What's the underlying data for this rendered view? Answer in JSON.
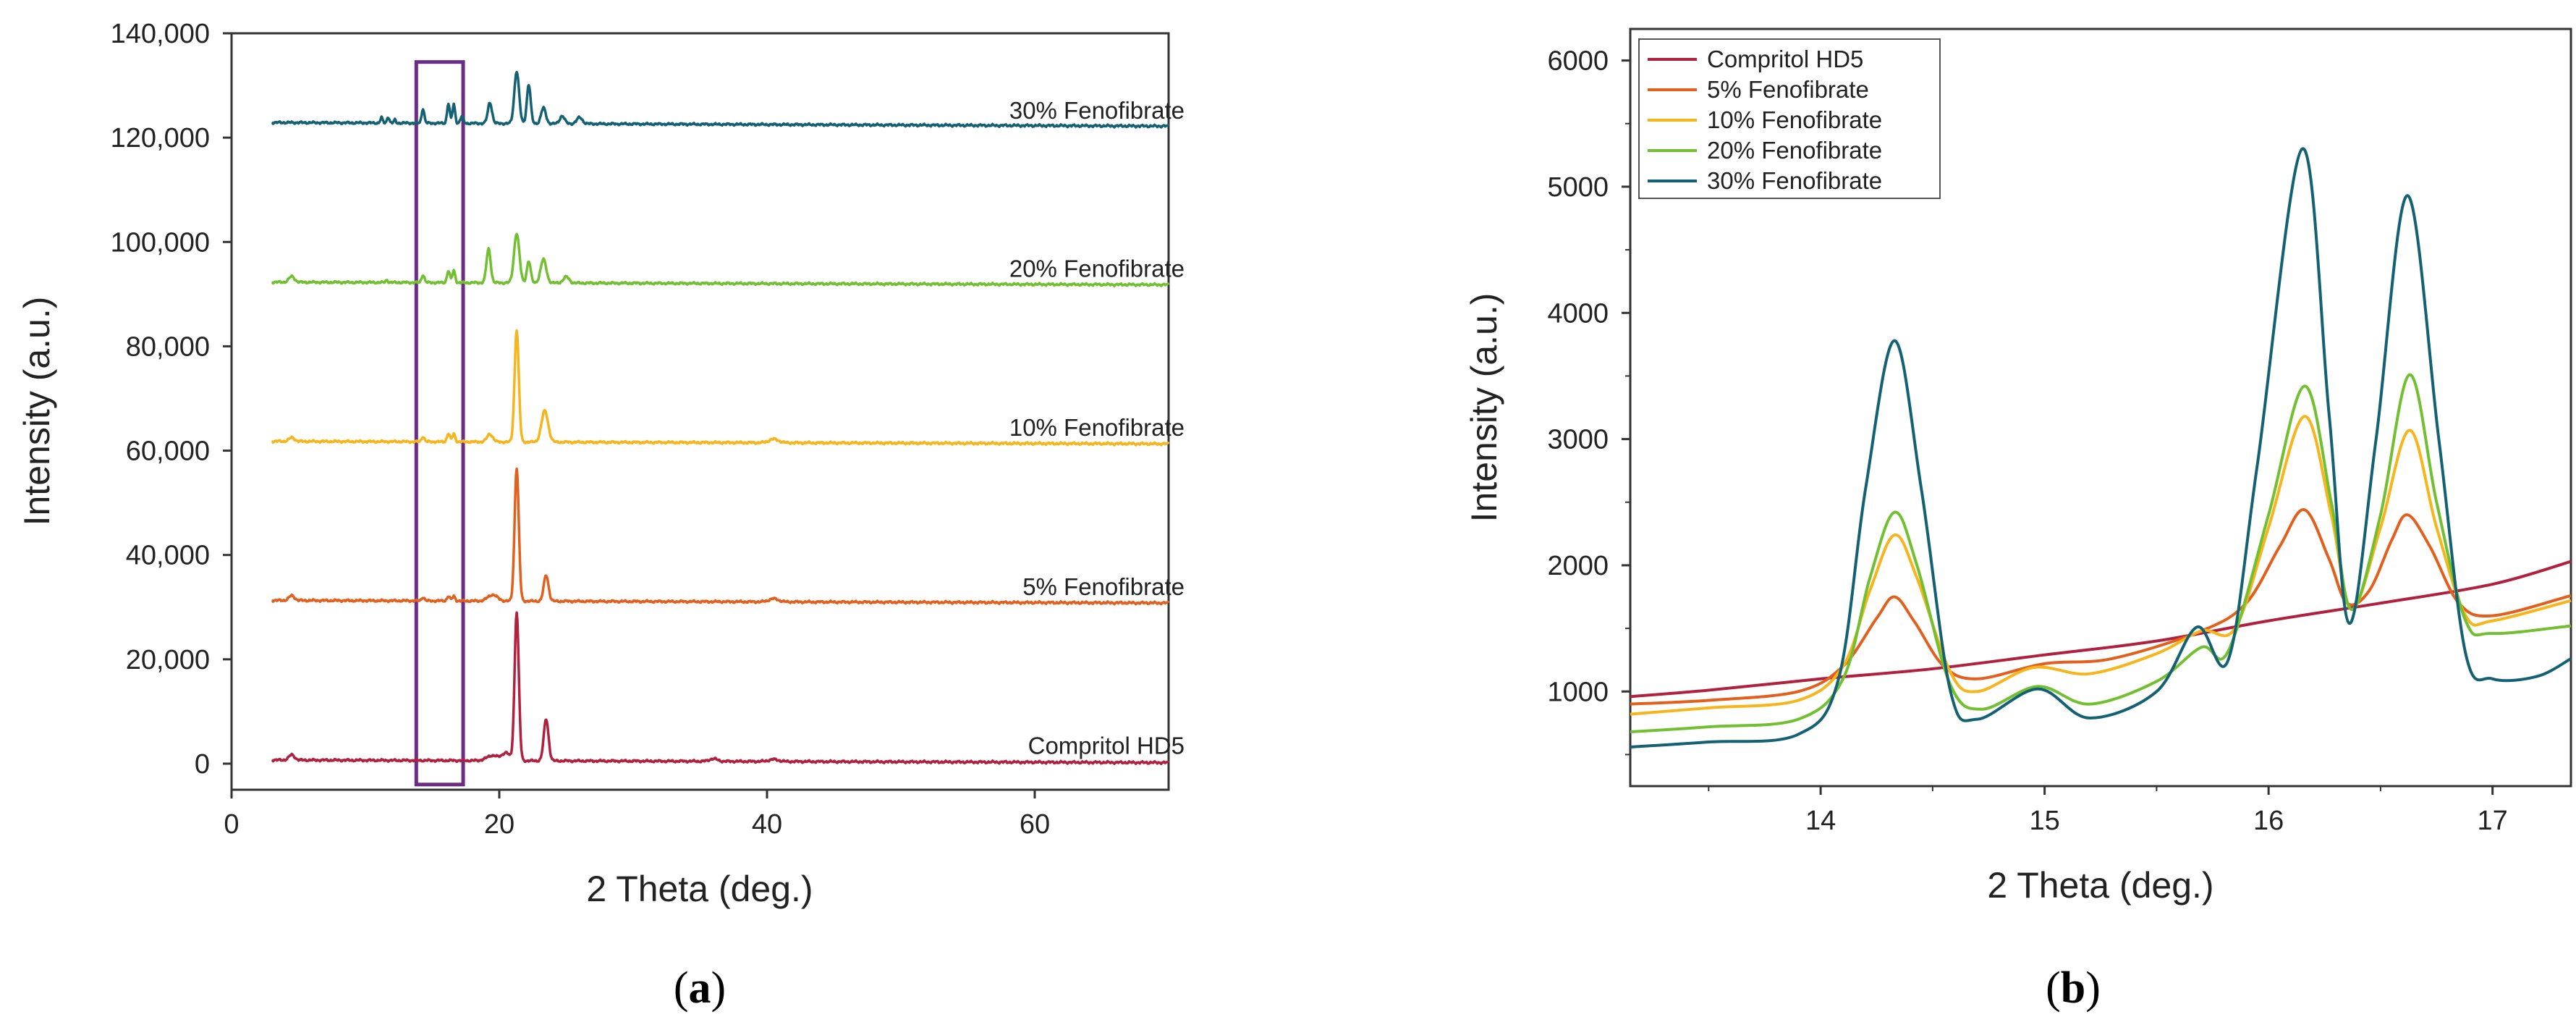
{
  "figure": {
    "panel_a_label_open": "(",
    "panel_a_label_letter": "a",
    "panel_a_label_close": ")",
    "panel_b_label_open": "(",
    "panel_b_label_letter": "b",
    "panel_b_label_close": ")"
  },
  "chart_data": [
    {
      "id": "a",
      "type": "line",
      "xlabel": "2 Theta (deg.)",
      "ylabel": "Intensity (a.u.)",
      "xlim": [
        0,
        70
      ],
      "ylim": [
        -5000,
        140000
      ],
      "x_ticks": [
        0,
        20,
        40,
        60
      ],
      "y_ticks": [
        0,
        20000,
        40000,
        60000,
        80000,
        100000,
        120000,
        140000
      ],
      "y_tick_labels": [
        "0",
        "20,000",
        "40,000",
        "60,000",
        "80,000",
        "100,000",
        "120,000",
        "140,000"
      ],
      "highlight_region": {
        "x": [
          13.8,
          17.3
        ],
        "y": [
          -4000,
          134500
        ],
        "color": "#6b2c83"
      },
      "series": [
        {
          "name": "Compritol HD5",
          "color": "#b0203f",
          "baseline": 700,
          "end_baseline": 200,
          "label_at": [
            62,
            3500
          ],
          "peaks": [
            [
              4.5,
              1000,
              0.3
            ],
            [
              19.5,
              1000,
              0.6
            ],
            [
              20.5,
              1500,
              0.4
            ],
            [
              21.3,
              28500,
              0.22
            ],
            [
              23.5,
              8000,
              0.25
            ],
            [
              36,
              500,
              0.4
            ],
            [
              40.5,
              400,
              0.5
            ]
          ]
        },
        {
          "name": "5% Fenofibrate",
          "color": "#e2601e",
          "baseline": 31300,
          "end_baseline": 30800,
          "label_at": [
            62,
            34000
          ],
          "peaks": [
            [
              4.5,
              900,
              0.3
            ],
            [
              14.3,
              700,
              0.15
            ],
            [
              16.2,
              900,
              0.15
            ],
            [
              16.6,
              900,
              0.15
            ],
            [
              19.5,
              1200,
              0.5
            ],
            [
              21.3,
              25500,
              0.22
            ],
            [
              23.5,
              5000,
              0.25
            ],
            [
              40.5,
              600,
              0.5
            ]
          ]
        },
        {
          "name": "10% Fenofibrate",
          "color": "#f7b51d",
          "baseline": 61800,
          "end_baseline": 61300,
          "label_at": [
            62,
            64500
          ],
          "peaks": [
            [
              4.5,
              700,
              0.3
            ],
            [
              14.3,
              1000,
              0.15
            ],
            [
              16.2,
              1600,
              0.15
            ],
            [
              16.6,
              1500,
              0.15
            ],
            [
              19.3,
              1500,
              0.3
            ],
            [
              21.3,
              21500,
              0.22
            ],
            [
              23.4,
              6000,
              0.35
            ],
            [
              40.5,
              700,
              0.5
            ]
          ]
        },
        {
          "name": "20% Fenofibrate",
          "color": "#72bf32",
          "baseline": 92300,
          "end_baseline": 91800,
          "label_at": [
            62,
            95000
          ],
          "peaks": [
            [
              4.5,
              1100,
              0.3
            ],
            [
              11.6,
              500,
              0.12
            ],
            [
              14.3,
              1500,
              0.15
            ],
            [
              16.2,
              2300,
              0.15
            ],
            [
              16.6,
              2300,
              0.15
            ],
            [
              19.2,
              6500,
              0.22
            ],
            [
              21.3,
              9500,
              0.28
            ],
            [
              22.2,
              4200,
              0.2
            ],
            [
              23.3,
              4500,
              0.3
            ],
            [
              25,
              1200,
              0.3
            ]
          ]
        },
        {
          "name": "30% Fenofibrate",
          "color": "#136173",
          "baseline": 122900,
          "end_baseline": 122200,
          "label_at": [
            62,
            125300
          ],
          "peaks": [
            [
              11.2,
              1000,
              0.12
            ],
            [
              11.7,
              1200,
              0.12
            ],
            [
              12.2,
              600,
              0.1
            ],
            [
              14.3,
              2800,
              0.14
            ],
            [
              16.2,
              3800,
              0.14
            ],
            [
              16.6,
              3600,
              0.14
            ],
            [
              17.2,
              1300,
              0.15
            ],
            [
              19.3,
              4000,
              0.22
            ],
            [
              21.3,
              10000,
              0.25
            ],
            [
              22.2,
              7500,
              0.2
            ],
            [
              23.3,
              3000,
              0.25
            ],
            [
              24.7,
              1500,
              0.25
            ],
            [
              26,
              1200,
              0.3
            ]
          ]
        }
      ]
    },
    {
      "id": "b",
      "type": "line",
      "xlabel": "2 Theta (deg.)",
      "ylabel": "Intensity (a.u.)",
      "xlim": [
        13.15,
        17.35
      ],
      "ylim": [
        250,
        6250
      ],
      "x_ticks": [
        14,
        15,
        16,
        17
      ],
      "y_ticks": [
        1000,
        2000,
        3000,
        4000,
        5000,
        6000
      ],
      "legend": "top-left",
      "series": [
        {
          "name": "Compritol HD5",
          "color": "#b0203f",
          "points": [
            [
              13.15,
              960
            ],
            [
              13.5,
              1010
            ],
            [
              14.0,
              1100
            ],
            [
              14.5,
              1180
            ],
            [
              15.0,
              1290
            ],
            [
              15.5,
              1400
            ],
            [
              16.0,
              1560
            ],
            [
              16.5,
              1700
            ],
            [
              17.0,
              1850
            ],
            [
              17.35,
              2030
            ]
          ]
        },
        {
          "name": "5% Fenofibrate",
          "color": "#e2601e",
          "points": [
            [
              13.15,
              900
            ],
            [
              13.5,
              930
            ],
            [
              13.9,
              1000
            ],
            [
              14.1,
              1200
            ],
            [
              14.25,
              1580
            ],
            [
              14.33,
              1750
            ],
            [
              14.42,
              1550
            ],
            [
              14.55,
              1200
            ],
            [
              14.7,
              1100
            ],
            [
              15.0,
              1220
            ],
            [
              15.3,
              1260
            ],
            [
              15.7,
              1480
            ],
            [
              15.9,
              1700
            ],
            [
              16.05,
              2150
            ],
            [
              16.16,
              2440
            ],
            [
              16.27,
              2050
            ],
            [
              16.35,
              1700
            ],
            [
              16.45,
              1800
            ],
            [
              16.55,
              2200
            ],
            [
              16.62,
              2400
            ],
            [
              16.72,
              2150
            ],
            [
              16.85,
              1700
            ],
            [
              17.0,
              1600
            ],
            [
              17.35,
              1760
            ]
          ]
        },
        {
          "name": "10% Fenofibrate",
          "color": "#f7b51d",
          "points": [
            [
              13.15,
              820
            ],
            [
              13.5,
              870
            ],
            [
              13.9,
              930
            ],
            [
              14.1,
              1200
            ],
            [
              14.22,
              1800
            ],
            [
              14.33,
              2240
            ],
            [
              14.43,
              1900
            ],
            [
              14.58,
              1150
            ],
            [
              14.7,
              1000
            ],
            [
              14.95,
              1190
            ],
            [
              15.2,
              1140
            ],
            [
              15.5,
              1300
            ],
            [
              15.7,
              1480
            ],
            [
              15.85,
              1500
            ],
            [
              16.0,
              2300
            ],
            [
              16.16,
              3180
            ],
            [
              16.28,
              2400
            ],
            [
              16.37,
              1650
            ],
            [
              16.5,
              2300
            ],
            [
              16.63,
              3070
            ],
            [
              16.75,
              2300
            ],
            [
              16.88,
              1600
            ],
            [
              17.0,
              1560
            ],
            [
              17.35,
              1720
            ]
          ]
        },
        {
          "name": "20% Fenofibrate",
          "color": "#72bf32",
          "points": [
            [
              13.15,
              680
            ],
            [
              13.5,
              720
            ],
            [
              13.9,
              780
            ],
            [
              14.1,
              1100
            ],
            [
              14.22,
              1900
            ],
            [
              14.33,
              2420
            ],
            [
              14.43,
              2000
            ],
            [
              14.58,
              1050
            ],
            [
              14.72,
              860
            ],
            [
              14.97,
              1040
            ],
            [
              15.2,
              900
            ],
            [
              15.5,
              1080
            ],
            [
              15.7,
              1350
            ],
            [
              15.82,
              1320
            ],
            [
              16.0,
              2400
            ],
            [
              16.16,
              3420
            ],
            [
              16.28,
              2500
            ],
            [
              16.37,
              1650
            ],
            [
              16.5,
              2400
            ],
            [
              16.63,
              3510
            ],
            [
              16.75,
              2500
            ],
            [
              16.88,
              1560
            ],
            [
              17.0,
              1460
            ],
            [
              17.35,
              1520
            ]
          ]
        },
        {
          "name": "30% Fenofibrate",
          "color": "#136173",
          "points": [
            [
              13.15,
              560
            ],
            [
              13.5,
              600
            ],
            [
              13.9,
              660
            ],
            [
              14.08,
              1100
            ],
            [
              14.2,
              2600
            ],
            [
              14.33,
              3780
            ],
            [
              14.45,
              2600
            ],
            [
              14.58,
              1000
            ],
            [
              14.7,
              780
            ],
            [
              14.97,
              1020
            ],
            [
              15.2,
              790
            ],
            [
              15.5,
              1000
            ],
            [
              15.68,
              1510
            ],
            [
              15.82,
              1250
            ],
            [
              15.95,
              2800
            ],
            [
              16.15,
              5300
            ],
            [
              16.27,
              3200
            ],
            [
              16.36,
              1540
            ],
            [
              16.48,
              3000
            ],
            [
              16.62,
              4930
            ],
            [
              16.76,
              3000
            ],
            [
              16.88,
              1300
            ],
            [
              17.0,
              1100
            ],
            [
              17.2,
              1120
            ],
            [
              17.35,
              1260
            ]
          ]
        }
      ]
    }
  ]
}
